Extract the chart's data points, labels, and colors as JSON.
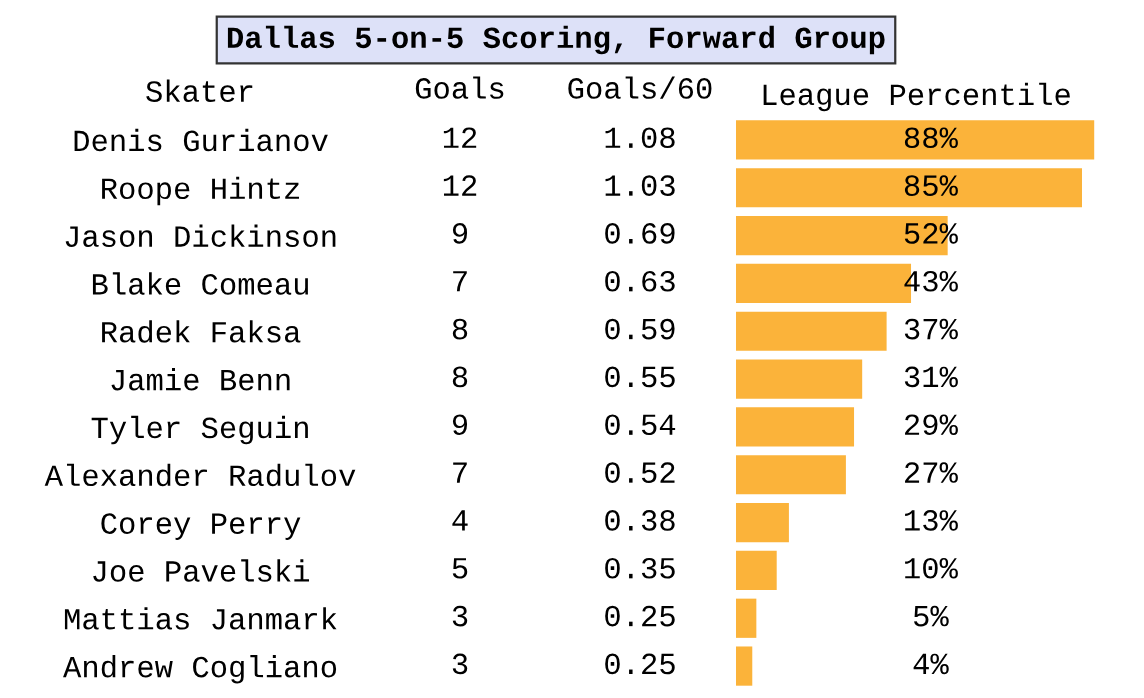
{
  "chart_data": [
    {
      "type": "heatmap",
      "title": "Dallas 5-on-5 Scoring, Forward Group",
      "ylabel": "Skater",
      "categories": [
        "Goals",
        "Goals/60"
      ],
      "y_categories": [
        "Denis Gurianov",
        "Roope Hintz",
        "Jason Dickinson",
        "Blake Comeau",
        "Radek Faksa",
        "Jamie Benn",
        "Tyler Seguin",
        "Alexander Radulov",
        "Corey Perry",
        "Joe Pavelski",
        "Mattias Janmark",
        "Andrew Cogliano"
      ],
      "cells": [
        [
          12,
          1.08
        ],
        [
          12,
          1.03
        ],
        [
          9,
          0.69
        ],
        [
          7,
          0.63
        ],
        [
          8,
          0.59
        ],
        [
          8,
          0.55
        ],
        [
          9,
          0.54
        ],
        [
          7,
          0.52
        ],
        [
          4,
          0.38
        ],
        [
          5,
          0.35
        ],
        [
          3,
          0.25
        ],
        [
          3,
          0.25
        ]
      ],
      "data_labels": true
    },
    {
      "type": "bar",
      "orientation": "horizontal",
      "xlabel": "League Percentile",
      "color": "#fbb33a",
      "categories": [
        null,
        null,
        null,
        null,
        null,
        null,
        null,
        null,
        null,
        null,
        null,
        null
      ],
      "values": [
        88,
        85,
        52,
        43,
        37,
        31,
        29,
        27,
        13,
        10,
        5,
        4
      ],
      "value_labels": [
        "88%",
        "85%",
        "52%",
        "43%",
        "37%",
        "31%",
        "29%",
        "27%",
        "13%",
        "10%",
        "5%",
        "4%"
      ]
    }
  ]
}
